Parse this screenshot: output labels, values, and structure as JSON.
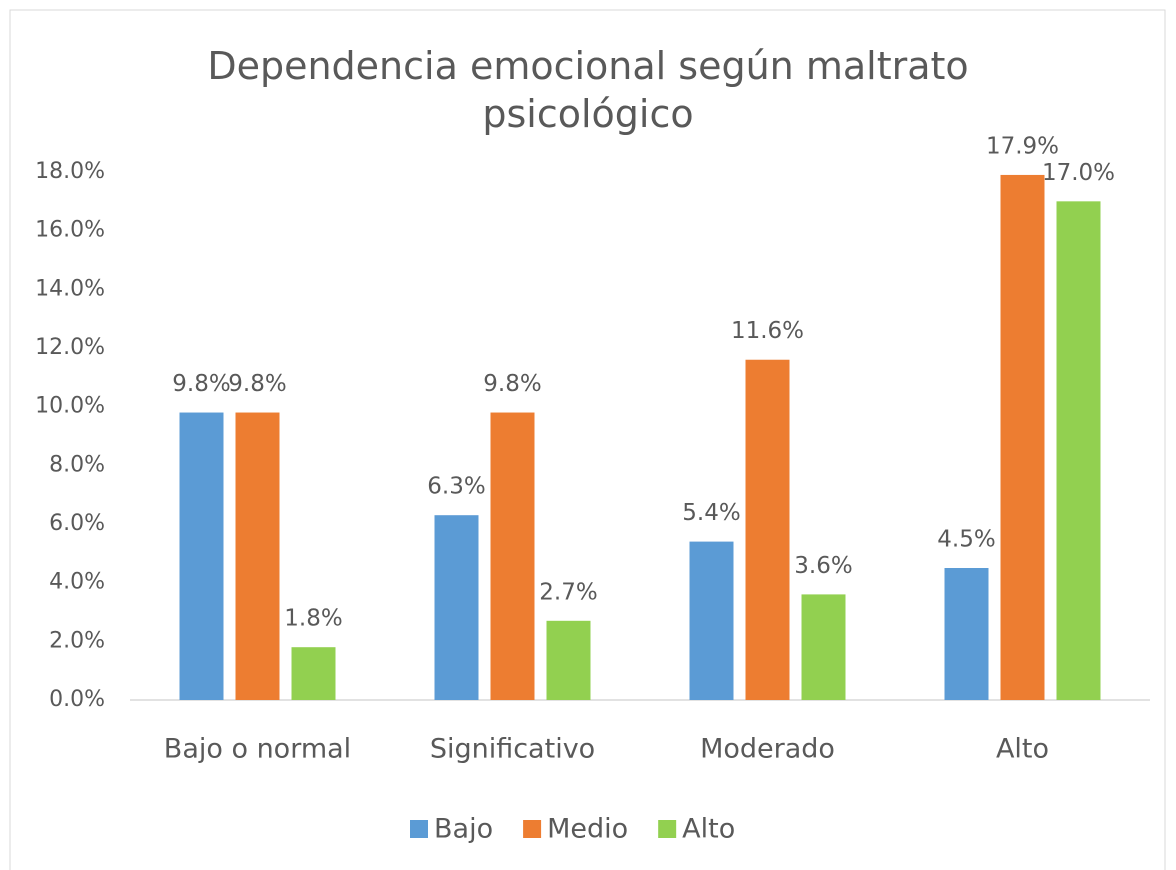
{
  "chart_data": {
    "type": "bar",
    "title": "Dependencia emocional según maltrato psicológico",
    "categories": [
      "Bajo o normal",
      "Significativo",
      "Moderado",
      "Alto"
    ],
    "series": [
      {
        "name": "Bajo",
        "color": "#5b9bd5",
        "values": [
          9.8,
          6.3,
          5.4,
          4.5
        ],
        "value_labels": [
          "9.8%",
          "6.3%",
          "5.4%",
          "4.5%"
        ]
      },
      {
        "name": "Medio",
        "color": "#ed7d31",
        "values": [
          9.8,
          9.8,
          11.6,
          17.9
        ],
        "value_labels": [
          "9.8%",
          "9.8%",
          "11.6%",
          "17.9%"
        ]
      },
      {
        "name": "Alto",
        "color": "#92d050",
        "values": [
          1.8,
          2.7,
          3.6,
          17.0
        ],
        "value_labels": [
          "1.8%",
          "2.7%",
          "3.6%",
          "17.0%"
        ]
      }
    ],
    "ylim": [
      0,
      18
    ],
    "yticks": [
      {
        "value": 0,
        "label": "0.0%"
      },
      {
        "value": 2,
        "label": "2.0%"
      },
      {
        "value": 4,
        "label": "4.0%"
      },
      {
        "value": 6,
        "label": "6.0%"
      },
      {
        "value": 8,
        "label": "8.0%"
      },
      {
        "value": 10,
        "label": "10.0%"
      },
      {
        "value": 12,
        "label": "12.0%"
      },
      {
        "value": 14,
        "label": "14.0%"
      },
      {
        "value": 16,
        "label": "16.0%"
      },
      {
        "value": 18,
        "label": "18.0%"
      }
    ],
    "grid": false,
    "legend": "bottom"
  }
}
